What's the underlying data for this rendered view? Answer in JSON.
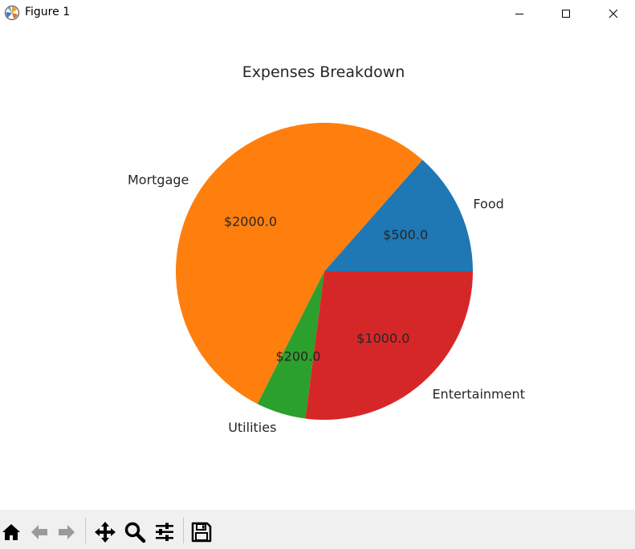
{
  "window": {
    "title": "Figure 1",
    "icons": {
      "app": "matplotlib-logo-icon",
      "minimize": "minimize-icon",
      "maximize": "maximize-icon",
      "close": "close-icon"
    }
  },
  "toolbar": {
    "buttons": [
      {
        "name": "home",
        "icon": "home-icon"
      },
      {
        "name": "back",
        "icon": "arrow-left-icon"
      },
      {
        "name": "forward",
        "icon": "arrow-right-icon"
      },
      {
        "name": "pan",
        "icon": "move-icon"
      },
      {
        "name": "zoom",
        "icon": "magnifier-icon"
      },
      {
        "name": "configure-subplots",
        "icon": "sliders-icon"
      },
      {
        "name": "save",
        "icon": "floppy-disk-icon"
      }
    ]
  },
  "chart_data": {
    "type": "pie",
    "title": "Expenses Breakdown",
    "start_angle_deg": 0,
    "direction": "counterclockwise",
    "slices": [
      {
        "label": "Food",
        "value": 500,
        "value_label": "$500.0",
        "color": "#1f77b4"
      },
      {
        "label": "Mortgage",
        "value": 2000,
        "value_label": "$2000.0",
        "color": "#ff7f0e"
      },
      {
        "label": "Utilities",
        "value": 200,
        "value_label": "$200.0",
        "color": "#2ca02c"
      },
      {
        "label": "Entertainment",
        "value": 1000,
        "value_label": "$1000.0",
        "color": "#d62728"
      }
    ]
  }
}
